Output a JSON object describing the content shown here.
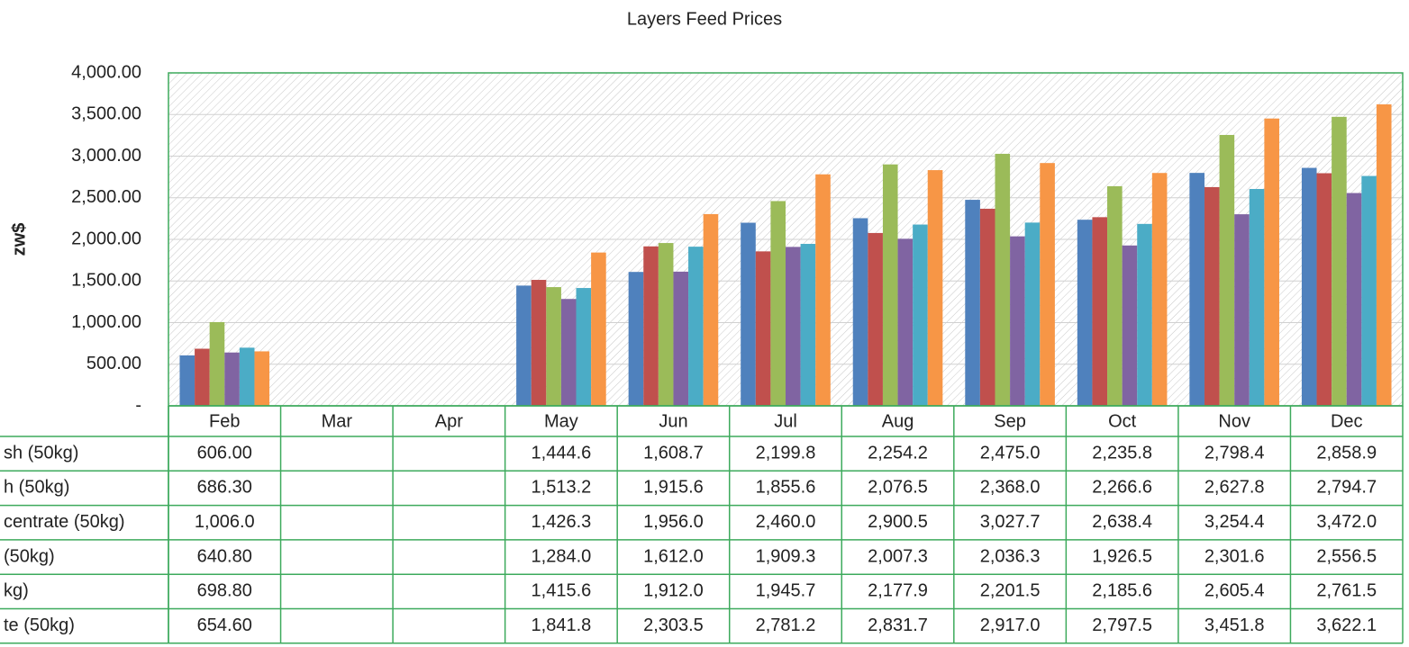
{
  "chart_data": {
    "type": "bar",
    "title": "Layers Feed Prices",
    "y_label": "zw$",
    "categories": [
      "Feb",
      "Mar",
      "Apr",
      "May",
      "Jun",
      "Jul",
      "Aug",
      "Sep",
      "Oct",
      "Nov",
      "Dec"
    ],
    "ylim": [
      0,
      4000
    ],
    "yticks": [
      {
        "value": 0,
        "label": "-"
      },
      {
        "value": 500,
        "label": "500.00"
      },
      {
        "value": 1000,
        "label": "1,000.00"
      },
      {
        "value": 1500,
        "label": "1,500.00"
      },
      {
        "value": 2000,
        "label": "2,000.00"
      },
      {
        "value": 2500,
        "label": "2,500.00"
      },
      {
        "value": 3000,
        "label": "3,000.00"
      },
      {
        "value": 3500,
        "label": "3,500.00"
      },
      {
        "value": 4000,
        "label": "4,000.00"
      }
    ],
    "grid": true,
    "series": [
      {
        "name": "sh  (50kg)",
        "color": "#4f81bd",
        "values": [
          606.0,
          null,
          null,
          1444.6,
          1608.7,
          2199.8,
          2254.2,
          2475.0,
          2235.8,
          2798.4,
          2858.9
        ],
        "value_labels": [
          "606.00",
          null,
          null,
          "1,444.6",
          "1,608.7",
          "2,199.8",
          "2,254.2",
          "2,475.0",
          "2,235.8",
          "2,798.4",
          "2,858.9"
        ]
      },
      {
        "name": "h  (50kg)",
        "color": "#c0504d",
        "values": [
          686.3,
          null,
          null,
          1513.2,
          1915.6,
          1855.6,
          2076.5,
          2368.0,
          2266.6,
          2627.8,
          2794.7
        ],
        "value_labels": [
          "686.30",
          null,
          null,
          "1,513.2",
          "1,915.6",
          "1,855.6",
          "2,076.5",
          "2,368.0",
          "2,266.6",
          "2,627.8",
          "2,794.7"
        ]
      },
      {
        "name": "centrate (50kg)",
        "color": "#9bbb59",
        "values": [
          1006.0,
          null,
          null,
          1426.3,
          1956.0,
          2460.0,
          2900.5,
          3027.7,
          2638.4,
          3254.4,
          3472.0
        ],
        "value_labels": [
          "1,006.0",
          null,
          null,
          "1,426.3",
          "1,956.0",
          "2,460.0",
          "2,900.5",
          "3,027.7",
          "2,638.4",
          "3,254.4",
          "3,472.0"
        ]
      },
      {
        "name": "(50kg)",
        "color": "#8064a2",
        "values": [
          640.8,
          null,
          null,
          1284.0,
          1612.0,
          1909.3,
          2007.3,
          2036.3,
          1926.5,
          2301.6,
          2556.5
        ],
        "value_labels": [
          "640.80",
          null,
          null,
          "1,284.0",
          "1,612.0",
          "1,909.3",
          "2,007.3",
          "2,036.3",
          "1,926.5",
          "2,301.6",
          "2,556.5"
        ]
      },
      {
        "name": "kg)",
        "color": "#4bacc6",
        "values": [
          698.8,
          null,
          null,
          1415.6,
          1912.0,
          1945.7,
          2177.9,
          2201.5,
          2185.6,
          2605.4,
          2761.5
        ],
        "value_labels": [
          "698.80",
          null,
          null,
          "1,415.6",
          "1,912.0",
          "1,945.7",
          "2,177.9",
          "2,201.5",
          "2,185.6",
          "2,605.4",
          "2,761.5"
        ]
      },
      {
        "name": "te  (50kg)",
        "color": "#f79646",
        "values": [
          654.6,
          null,
          null,
          1841.8,
          2303.5,
          2781.2,
          2831.7,
          2917.0,
          2797.5,
          3451.8,
          3622.1
        ],
        "value_labels": [
          "654.60",
          null,
          null,
          "1,841.8",
          "2,303.5",
          "2,781.2",
          "2,831.7",
          "2,917.0",
          "2,797.5",
          "3,451.8",
          "3,622.1"
        ]
      }
    ]
  }
}
